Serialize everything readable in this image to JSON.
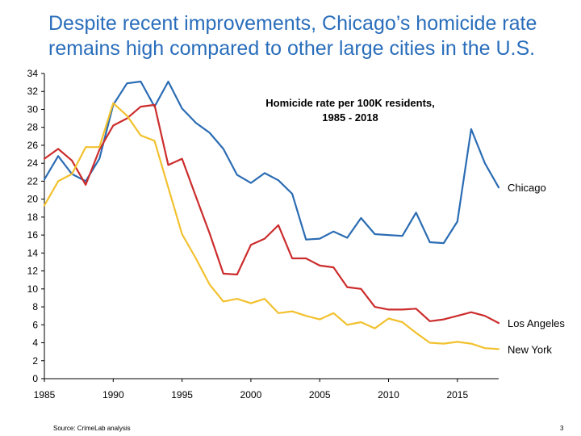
{
  "slide": {
    "title_line1": "Despite recent improvements, Chicago’s homicide rate",
    "title_line2": "remains high compared to other large cities in the U.S.",
    "source": "Source: CrimeLab analysis",
    "page_number": "3"
  },
  "chart_data": {
    "type": "line",
    "title_lines": [
      "Homicide rate per 100K residents,",
      "1985 - 2018"
    ],
    "xlabel": "",
    "ylabel": "",
    "xlim": [
      1985,
      2018
    ],
    "ylim": [
      0,
      34
    ],
    "x_ticks": [
      1985,
      1990,
      1995,
      2000,
      2005,
      2010,
      2015
    ],
    "y_ticks": [
      0,
      2,
      4,
      6,
      8,
      10,
      12,
      14,
      16,
      18,
      20,
      22,
      24,
      26,
      28,
      30,
      32,
      34
    ],
    "grid": false,
    "legend": "series labels at right end of lines",
    "x": [
      1985,
      1986,
      1987,
      1988,
      1989,
      1990,
      1991,
      1992,
      1993,
      1994,
      1995,
      1996,
      1997,
      1998,
      1999,
      2000,
      2001,
      2002,
      2003,
      2004,
      2005,
      2006,
      2007,
      2008,
      2009,
      2010,
      2011,
      2012,
      2013,
      2014,
      2015,
      2016,
      2017,
      2018
    ],
    "series": [
      {
        "name": "Chicago",
        "color": "#2b6cb3",
        "values": [
          22.2,
          24.8,
          22.8,
          22.0,
          24.5,
          30.5,
          32.9,
          33.1,
          30.3,
          33.1,
          30.1,
          28.5,
          27.4,
          25.6,
          22.7,
          21.8,
          22.9,
          22.1,
          20.6,
          15.5,
          15.6,
          16.4,
          15.7,
          17.9,
          16.1,
          16.0,
          15.9,
          18.5,
          15.2,
          15.1,
          17.5,
          27.8,
          24.0,
          21.3
        ]
      },
      {
        "name": "Los Angeles",
        "color": "#cc2c2c",
        "values": [
          24.5,
          25.6,
          24.3,
          21.6,
          25.5,
          28.2,
          29.0,
          30.3,
          30.5,
          23.8,
          24.5,
          20.3,
          16.2,
          11.7,
          11.6,
          14.9,
          15.6,
          17.1,
          13.4,
          13.4,
          12.6,
          12.4,
          10.2,
          10.0,
          8.0,
          7.7,
          7.7,
          7.8,
          6.4,
          6.6,
          7.0,
          7.4,
          7.0,
          6.2
        ]
      },
      {
        "name": "New York",
        "color": "#f2c12e",
        "values": [
          19.3,
          22.0,
          22.8,
          25.8,
          25.8,
          30.7,
          29.3,
          27.1,
          26.5,
          21.3,
          16.1,
          13.4,
          10.5,
          8.6,
          8.9,
          8.4,
          8.9,
          7.3,
          7.5,
          7.0,
          6.6,
          7.3,
          6.0,
          6.3,
          5.6,
          6.7,
          6.3,
          5.1,
          4.0,
          3.9,
          4.1,
          3.9,
          3.4,
          3.3
        ]
      }
    ]
  }
}
